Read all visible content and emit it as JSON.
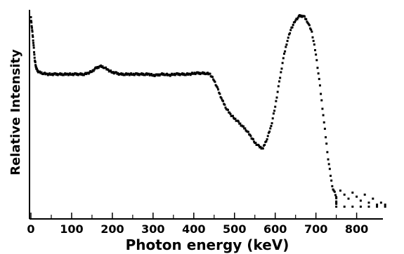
{
  "chart_data": {
    "type": "scatter",
    "title": "",
    "xlabel": "Photon energy (keV)",
    "ylabel": "Relative Intensity",
    "xlim": [
      0,
      880
    ],
    "ylim": [
      0,
      1.0
    ],
    "x_ticks": [
      0,
      100,
      200,
      300,
      400,
      500,
      600,
      700,
      800
    ],
    "x_tick_labels": [
      "0",
      "100",
      "200",
      "300",
      "400",
      "500",
      "600",
      "700",
      "800"
    ],
    "y_tick_labels": [],
    "grid": false,
    "legend": "none",
    "marker_color": "#000000",
    "series": [
      {
        "points": [
          [
            0,
            0.98
          ],
          [
            3,
            0.92
          ],
          [
            6,
            0.86
          ],
          [
            9,
            0.78
          ],
          [
            12,
            0.74
          ],
          [
            15,
            0.72
          ],
          [
            20,
            0.71
          ],
          [
            30,
            0.705
          ],
          [
            40,
            0.7
          ],
          [
            50,
            0.7
          ],
          [
            60,
            0.7
          ],
          [
            70,
            0.7
          ],
          [
            80,
            0.7
          ],
          [
            90,
            0.7
          ],
          [
            100,
            0.7
          ],
          [
            110,
            0.7
          ],
          [
            120,
            0.7
          ],
          [
            130,
            0.7
          ],
          [
            140,
            0.705
          ],
          [
            150,
            0.715
          ],
          [
            160,
            0.73
          ],
          [
            170,
            0.74
          ],
          [
            180,
            0.735
          ],
          [
            190,
            0.72
          ],
          [
            200,
            0.71
          ],
          [
            210,
            0.705
          ],
          [
            220,
            0.7
          ],
          [
            230,
            0.7
          ],
          [
            240,
            0.7
          ],
          [
            250,
            0.7
          ],
          [
            260,
            0.7
          ],
          [
            270,
            0.7
          ],
          [
            280,
            0.7
          ],
          [
            290,
            0.7
          ],
          [
            300,
            0.695
          ],
          [
            310,
            0.695
          ],
          [
            320,
            0.7
          ],
          [
            330,
            0.7
          ],
          [
            340,
            0.695
          ],
          [
            350,
            0.7
          ],
          [
            360,
            0.7
          ],
          [
            370,
            0.7
          ],
          [
            380,
            0.7
          ],
          [
            390,
            0.7
          ],
          [
            400,
            0.705
          ],
          [
            410,
            0.705
          ],
          [
            420,
            0.705
          ],
          [
            430,
            0.705
          ],
          [
            440,
            0.7
          ],
          [
            450,
            0.67
          ],
          [
            460,
            0.62
          ],
          [
            470,
            0.57
          ],
          [
            480,
            0.53
          ],
          [
            490,
            0.5
          ],
          [
            500,
            0.48
          ],
          [
            510,
            0.46
          ],
          [
            520,
            0.44
          ],
          [
            530,
            0.42
          ],
          [
            540,
            0.39
          ],
          [
            550,
            0.36
          ],
          [
            560,
            0.34
          ],
          [
            570,
            0.33
          ],
          [
            580,
            0.38
          ],
          [
            590,
            0.44
          ],
          [
            600,
            0.54
          ],
          [
            610,
            0.66
          ],
          [
            620,
            0.78
          ],
          [
            630,
            0.87
          ],
          [
            640,
            0.93
          ],
          [
            650,
            0.97
          ],
          [
            660,
            0.99
          ],
          [
            670,
            0.99
          ],
          [
            680,
            0.96
          ],
          [
            690,
            0.91
          ],
          [
            700,
            0.8
          ],
          [
            710,
            0.64
          ],
          [
            720,
            0.46
          ],
          [
            730,
            0.28
          ],
          [
            740,
            0.14
          ],
          [
            750,
            0.09
          ],
          [
            760,
            0.12
          ],
          [
            770,
            0.1
          ],
          [
            780,
            0.08
          ],
          [
            790,
            0.11
          ],
          [
            800,
            0.09
          ],
          [
            810,
            0.07
          ],
          [
            820,
            0.1
          ],
          [
            830,
            0.06
          ],
          [
            840,
            0.08
          ],
          [
            850,
            0.05
          ],
          [
            860,
            0.06
          ],
          [
            870,
            0.05
          ],
          [
            750,
            0.04
          ],
          [
            770,
            0.04
          ],
          [
            790,
            0.04
          ],
          [
            810,
            0.04
          ],
          [
            830,
            0.04
          ],
          [
            850,
            0.04
          ],
          [
            870,
            0.04
          ]
        ]
      }
    ]
  }
}
